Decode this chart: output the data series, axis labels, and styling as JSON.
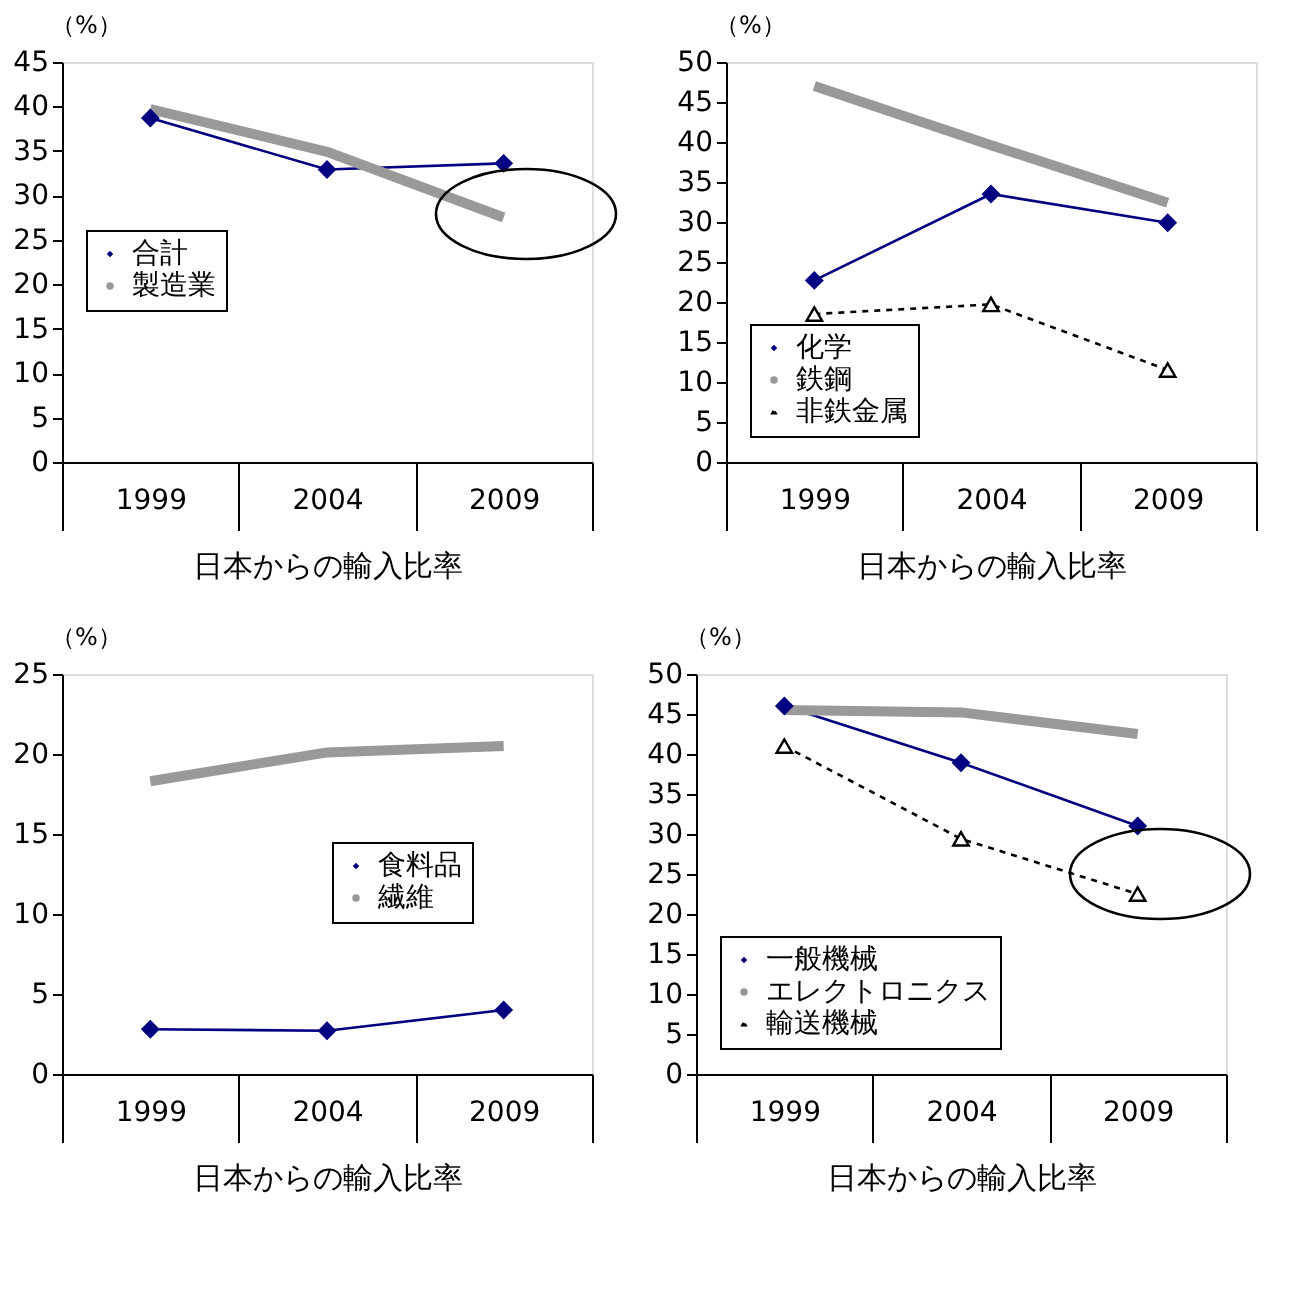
{
  "chart_data": [
    {
      "type": "line",
      "ylabel": "（%）",
      "xlabel": "日本からの輸入比率",
      "categories": [
        "1999",
        "2004",
        "2009"
      ],
      "ylim": [
        0,
        45
      ],
      "yticks": [
        0,
        5,
        10,
        15,
        20,
        25,
        30,
        35,
        40,
        45
      ],
      "grid": false,
      "legend": "left",
      "series": [
        {
          "name": "合計",
          "color": "#000080",
          "values": [
            38.7,
            32.9,
            33.6
          ],
          "marker": "diamond",
          "line_style": "solid"
        },
        {
          "name": "製造業",
          "color": "#999999",
          "values": [
            39.7,
            34.9,
            27.5
          ],
          "marker": "none",
          "line_style": "solid"
        }
      ]
    },
    {
      "type": "line",
      "ylabel": "（%）",
      "xlabel": "日本からの輸入比率",
      "categories": [
        "1999",
        "2004",
        "2009"
      ],
      "ylim": [
        0,
        50
      ],
      "yticks": [
        0,
        5,
        10,
        15,
        20,
        25,
        30,
        35,
        40,
        45,
        50
      ],
      "grid": false,
      "legend": "bottom left",
      "series": [
        {
          "name": "化学",
          "color": "#000080",
          "values": [
            22.7,
            33.5,
            29.9
          ],
          "marker": "diamond",
          "line_style": "solid"
        },
        {
          "name": "鉄鋼",
          "color": "#999999",
          "values": [
            47.0,
            39.6,
            32.4
          ],
          "marker": "none",
          "line_style": "solid"
        },
        {
          "name": "非鉄金属",
          "color": "#000000",
          "values": [
            18.5,
            19.7,
            11.5
          ],
          "marker": "triangle",
          "line_style": "dashed"
        }
      ]
    },
    {
      "type": "line",
      "ylabel": "（%）",
      "xlabel": "日本からの輸入比率",
      "categories": [
        "1999",
        "2004",
        "2009"
      ],
      "ylim": [
        0,
        25
      ],
      "yticks": [
        0,
        5,
        10,
        15,
        20,
        25
      ],
      "grid": false,
      "legend": "right",
      "series": [
        {
          "name": "食料品",
          "color": "#000080",
          "values": [
            2.8,
            2.7,
            4.0
          ],
          "marker": "diamond",
          "line_style": "solid"
        },
        {
          "name": "繊維",
          "color": "#999999",
          "values": [
            18.3,
            20.1,
            20.5
          ],
          "marker": "none",
          "line_style": "solid"
        }
      ]
    },
    {
      "type": "line",
      "ylabel": "（%）",
      "xlabel": "日本からの輸入比率",
      "categories": [
        "1999",
        "2004",
        "2009"
      ],
      "ylim": [
        0,
        50
      ],
      "yticks": [
        0,
        5,
        10,
        15,
        20,
        25,
        30,
        35,
        40,
        45,
        50
      ],
      "grid": false,
      "legend": "bottom left",
      "series": [
        {
          "name": "一般機械",
          "color": "#000080",
          "values": [
            46.0,
            38.9,
            31.0
          ],
          "marker": "diamond",
          "line_style": "solid"
        },
        {
          "name": "エレクトロニクス",
          "color": "#999999",
          "values": [
            45.5,
            45.2,
            42.5
          ],
          "marker": "none",
          "line_style": "solid"
        },
        {
          "name": "輸送機械",
          "color": "#000000",
          "values": [
            41.0,
            29.4,
            22.5
          ],
          "marker": "triangle",
          "line_style": "dashed"
        }
      ]
    }
  ]
}
